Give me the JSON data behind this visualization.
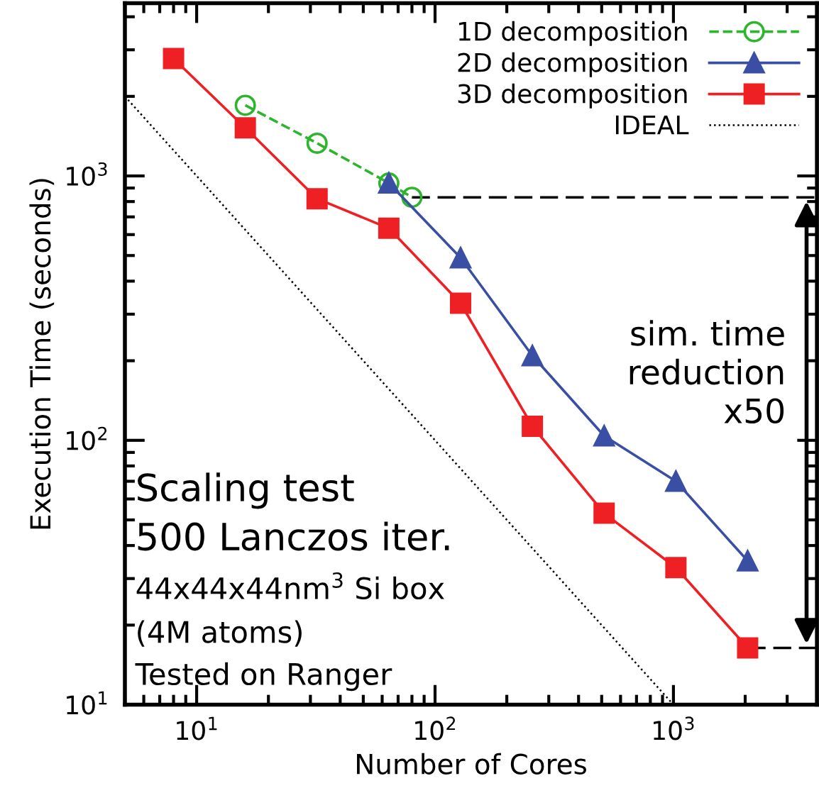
{
  "chart_data": {
    "type": "line",
    "xlabel": "Number of Cores",
    "ylabel": "Execution Time (seconds)",
    "log": "xy",
    "xlim": [
      5,
      4000
    ],
    "ylim": [
      10,
      4500
    ],
    "xticks": [
      {
        "value": 10,
        "label": "10$^{1}$"
      },
      {
        "value": 100,
        "label": "10$^{2}$"
      },
      {
        "value": 1000,
        "label": "10$^{3}$"
      }
    ],
    "yticks": [
      {
        "value": 10,
        "label": "10$^{1}$"
      },
      {
        "value": 100,
        "label": "10$^{2}$"
      },
      {
        "value": 1000,
        "label": "10$^{3}$"
      }
    ],
    "grid": false,
    "legend": "top right",
    "series": [
      {
        "name": "1D decomposition",
        "color": "#2db52d",
        "marker": "circle",
        "line_style": "dashed",
        "x": [
          16,
          32,
          64,
          80
        ],
        "values": [
          1850,
          1330,
          940,
          830
        ]
      },
      {
        "name": "2D decomposition",
        "color": "#3a4fa3",
        "marker": "triangle",
        "line_style": "solid",
        "x": [
          64,
          128,
          256,
          512,
          1024,
          2048
        ],
        "values": [
          940,
          490,
          209,
          104,
          70,
          35
        ]
      },
      {
        "name": "3D decomposition",
        "color": "#ee2024",
        "marker": "square",
        "line_style": "solid",
        "x": [
          8,
          16,
          32,
          64,
          128,
          256,
          512,
          1024,
          2048
        ],
        "values": [
          2780,
          1520,
          820,
          634,
          330,
          113,
          53,
          33,
          16.4
        ]
      },
      {
        "name": "IDEAL",
        "color": "#000000",
        "marker": "none",
        "line_style": "dotted",
        "x": [
          5,
          1000
        ],
        "values": [
          2000,
          10
        ]
      }
    ],
    "ref_lines": [
      {
        "axis": "y",
        "value": 830,
        "color": "#000000",
        "line_style": "dashed"
      },
      {
        "axis": "y",
        "value": 16.4,
        "color": "#000000",
        "line_style": "dashed"
      }
    ],
    "annotations": [
      "sim. time\nreduction\nx50",
      "Scaling test",
      "500 Lanczos iter.",
      "44x44x44nm$^{3}$ Si box",
      "(4M atoms)",
      "Tested on Ranger"
    ]
  }
}
